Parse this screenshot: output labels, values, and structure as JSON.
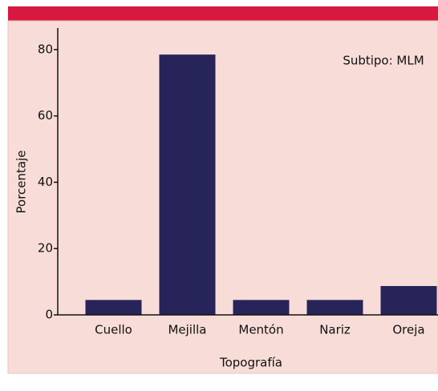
{
  "chart_data": {
    "type": "bar",
    "annotation": "Subtipo: MLM",
    "x_label": "Topografía",
    "y_label": "Porcentaje",
    "categories": [
      "Cuello",
      "Mejilla",
      "Mentón",
      "Nariz",
      "Oreja"
    ],
    "values": [
      4.5,
      78.5,
      4.5,
      4.5,
      8.7
    ],
    "color": "#27245a",
    "ylim": [
      0,
      86.5
    ],
    "yticks": [
      0,
      20,
      40,
      60,
      80
    ],
    "grid": false
  }
}
